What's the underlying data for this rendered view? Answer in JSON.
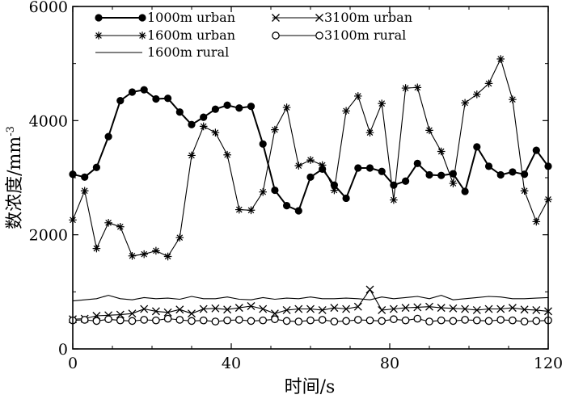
{
  "chart_data": {
    "type": "line",
    "xlabel": "时间/s",
    "ylabel": "数浓度/mm",
    "ylabel_sup": "-3",
    "xlim": [
      0,
      120
    ],
    "ylim": [
      0,
      6000
    ],
    "xticks": [
      0,
      40,
      80,
      120
    ],
    "yticks": [
      0,
      2000,
      4000,
      6000
    ],
    "grid": false,
    "legend": "top-left",
    "x": [
      0,
      3,
      6,
      9,
      12,
      15,
      18,
      21,
      24,
      27,
      30,
      33,
      36,
      39,
      42,
      45,
      48,
      51,
      54,
      57,
      60,
      63,
      66,
      69,
      72,
      75,
      78,
      81,
      84,
      87,
      90,
      93,
      96,
      99,
      102,
      105,
      108,
      111,
      114,
      117,
      120
    ],
    "series": [
      {
        "name": "1000m urban",
        "marker": "circle-filled",
        "line": "thick",
        "values": [
          3060,
          3010,
          3180,
          3720,
          4350,
          4500,
          4540,
          4380,
          4390,
          4150,
          3930,
          4060,
          4200,
          4270,
          4220,
          4250,
          3590,
          2780,
          2510,
          2420,
          3010,
          3150,
          2870,
          2640,
          3170,
          3170,
          3110,
          2870,
          2940,
          3250,
          3050,
          3040,
          3070,
          2760,
          3540,
          3200,
          3050,
          3100,
          3060,
          3480,
          3200
        ]
      },
      {
        "name": "1600m urban",
        "marker": "asterisk",
        "line": "thin",
        "values": [
          2260,
          2770,
          1760,
          2210,
          2140,
          1630,
          1660,
          1720,
          1620,
          1950,
          3390,
          3900,
          3790,
          3400,
          2440,
          2430,
          2750,
          3840,
          4230,
          3210,
          3310,
          3220,
          2780,
          4170,
          4430,
          3790,
          4300,
          2610,
          4570,
          4580,
          3830,
          3460,
          2900,
          4310,
          4460,
          4650,
          5080,
          4370,
          2770,
          2230,
          2620
        ]
      },
      {
        "name": "1600m rural",
        "marker": "none",
        "line": "thin",
        "values": [
          840,
          860,
          880,
          940,
          880,
          860,
          900,
          880,
          890,
          870,
          920,
          880,
          880,
          910,
          870,
          860,
          900,
          870,
          890,
          880,
          910,
          880,
          880,
          890,
          880,
          860,
          910,
          880,
          900,
          920,
          880,
          940,
          860,
          880,
          900,
          920,
          910,
          880,
          880,
          890,
          900
        ]
      },
      {
        "name": "3100m urban",
        "marker": "x",
        "line": "thin",
        "values": [
          520,
          530,
          580,
          590,
          600,
          620,
          700,
          660,
          640,
          690,
          620,
          700,
          710,
          690,
          720,
          750,
          700,
          620,
          680,
          700,
          700,
          680,
          720,
          700,
          740,
          1040,
          680,
          700,
          720,
          730,
          740,
          720,
          710,
          700,
          680,
          700,
          700,
          720,
          690,
          680,
          660
        ]
      },
      {
        "name": "3100m rural",
        "marker": "circle-open",
        "line": "thin",
        "values": [
          500,
          510,
          490,
          520,
          500,
          490,
          510,
          500,
          530,
          510,
          490,
          500,
          480,
          500,
          510,
          490,
          500,
          520,
          490,
          480,
          500,
          510,
          480,
          490,
          510,
          500,
          490,
          520,
          500,
          530,
          480,
          500,
          490,
          510,
          500,
          490,
          510,
          500,
          480,
          490,
          500
        ]
      }
    ]
  }
}
